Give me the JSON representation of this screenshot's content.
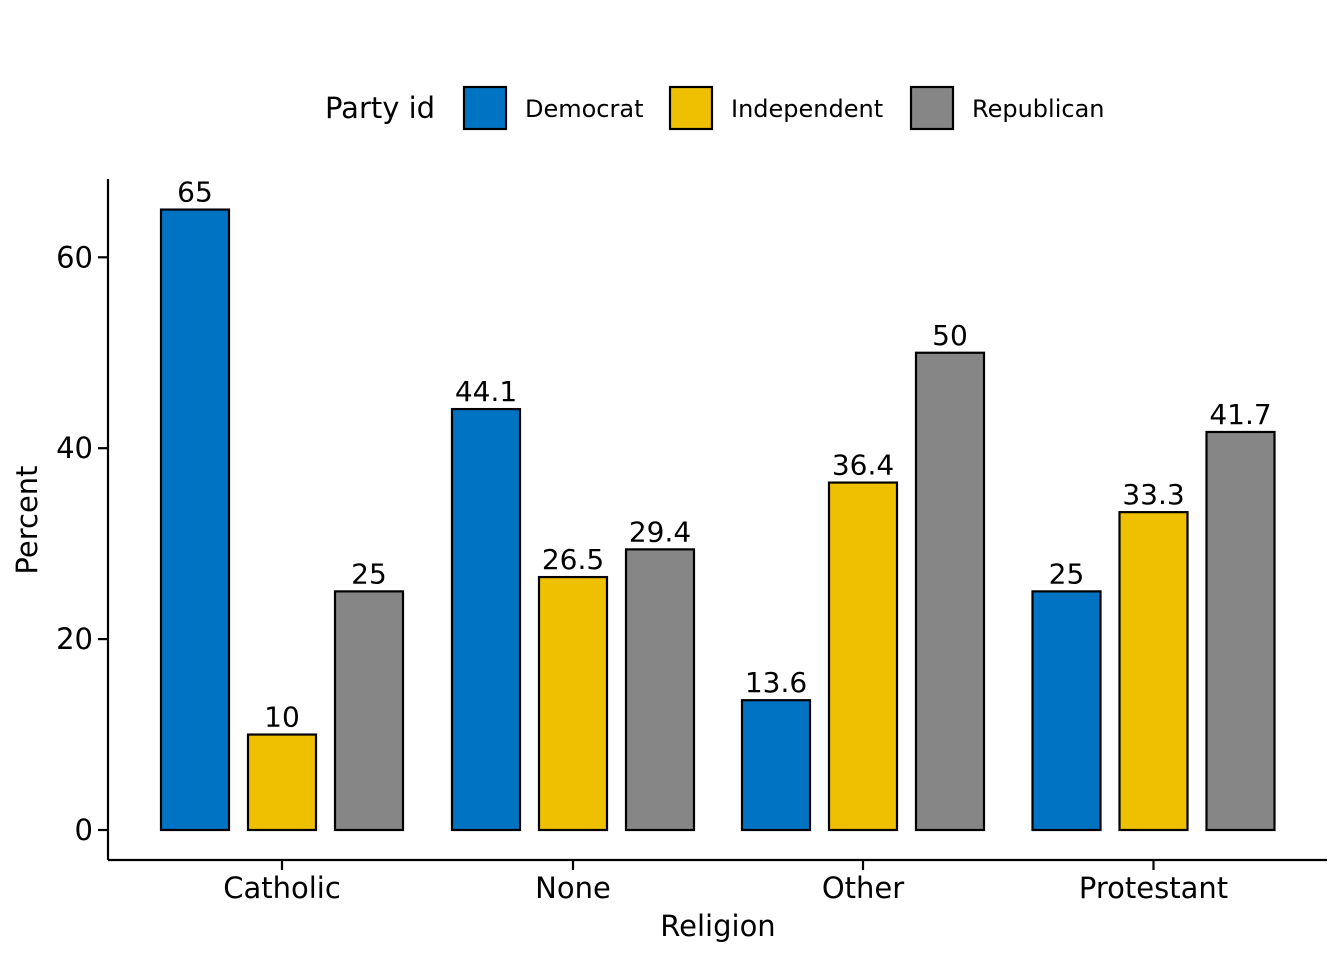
{
  "chart_data": {
    "type": "bar",
    "xlabel": "Religion",
    "ylabel": "Percent",
    "categories": [
      "Catholic",
      "None",
      "Other",
      "Protestant"
    ],
    "series": [
      {
        "name": "Democrat",
        "color": "#0073C2",
        "values": [
          65,
          44.1,
          13.6,
          25
        ],
        "labels": [
          "65",
          "44.1",
          "13.6",
          "25"
        ]
      },
      {
        "name": "Independent",
        "color": "#EFC000",
        "values": [
          10,
          26.5,
          36.4,
          33.3
        ],
        "labels": [
          "10",
          "26.5",
          "36.4",
          "33.3"
        ]
      },
      {
        "name": "Republican",
        "color": "#868686",
        "values": [
          25,
          29.4,
          50,
          41.7
        ],
        "labels": [
          "25",
          "29.4",
          "50",
          "41.7"
        ]
      }
    ],
    "y_ticks": [
      0,
      20,
      40,
      60
    ],
    "y_tick_labels": [
      "0",
      "20",
      "40",
      "60"
    ],
    "ylim": [
      0,
      68.25
    ],
    "legend": {
      "title": "Party id",
      "position": "top"
    },
    "grid": false
  }
}
